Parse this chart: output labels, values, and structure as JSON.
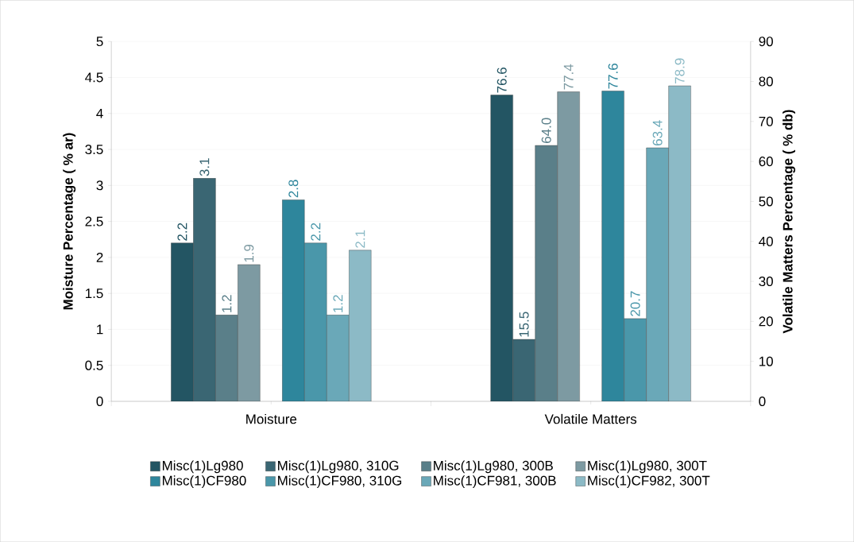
{
  "chart_data": {
    "type": "bar",
    "categories": [
      "Moisture",
      "Volatile Matters"
    ],
    "ylabel": "Moisture Percentage ( % ar)",
    "y2label": "Volatile Matters Percentage ( % db)",
    "ylim": [
      0,
      5
    ],
    "yticks": [
      0,
      0.5,
      1,
      1.5,
      2,
      2.5,
      3,
      3.5,
      4,
      4.5,
      5
    ],
    "y2lim": [
      0,
      90
    ],
    "y2ticks": [
      0,
      10,
      20,
      30,
      40,
      50,
      60,
      70,
      80,
      90
    ],
    "grid": "y",
    "legend": "bottom",
    "series": [
      {
        "name": "Misc(1)Lg980",
        "color": "#235563",
        "values": [
          2.2,
          null
        ],
        "value_labels": [
          "2.2",
          null
        ]
      },
      {
        "name": "Misc(1)Lg980, 310G",
        "color": "#3a6673",
        "values": [
          3.1,
          null
        ],
        "value_labels": [
          "3.1",
          null
        ]
      },
      {
        "name": "Misc(1)Lg980, 300B",
        "color": "#5a7f89",
        "values": [
          1.2,
          null
        ],
        "value_labels": [
          "1.2",
          null
        ]
      },
      {
        "name": "Misc(1)Lg980, 300T",
        "color": "#7d9aa2",
        "values": [
          1.9,
          null
        ],
        "value_labels": [
          "1.9",
          null
        ]
      },
      {
        "name": "Misc(1)CF980",
        "color": "#2e869c",
        "values": [
          2.8,
          null
        ],
        "value_labels": [
          "2.8",
          null
        ]
      },
      {
        "name": "Misc(1)CF980, 310G",
        "color": "#4a97aa",
        "values": [
          2.2,
          null
        ],
        "value_labels": [
          "2.2",
          null
        ]
      },
      {
        "name": "Misc(1)CF981, 300B",
        "color": "#6aa8b8",
        "values": [
          1.2,
          null
        ],
        "value_labels": [
          "1.2",
          null
        ]
      },
      {
        "name": "Misc(1)CF982, 300T",
        "color": "#8cbac6",
        "values": [
          2.1,
          null
        ],
        "value_labels": [
          "2.1",
          null
        ]
      },
      {
        "axis": "y2",
        "color": "#235563",
        "values": [
          null,
          76.6
        ],
        "value_labels": [
          null,
          "76.6"
        ]
      },
      {
        "axis": "y2",
        "color": "#3a6673",
        "values": [
          null,
          15.5
        ],
        "value_labels": [
          null,
          "15.5"
        ]
      },
      {
        "axis": "y2",
        "color": "#5a7f89",
        "values": [
          null,
          64.0
        ],
        "value_labels": [
          null,
          "64.0"
        ]
      },
      {
        "axis": "y2",
        "color": "#7d9aa2",
        "values": [
          null,
          77.4
        ],
        "value_labels": [
          null,
          "77.4"
        ]
      },
      {
        "axis": "y2",
        "color": "#2e869c",
        "values": [
          null,
          77.6
        ],
        "value_labels": [
          null,
          "77.6"
        ]
      },
      {
        "axis": "y2",
        "color": "#4a97aa",
        "values": [
          null,
          20.7
        ],
        "value_labels": [
          null,
          "20.7"
        ]
      },
      {
        "axis": "y2",
        "color": "#6aa8b8",
        "values": [
          null,
          63.4
        ],
        "value_labels": [
          null,
          "63.4"
        ]
      },
      {
        "axis": "y2",
        "color": "#8cbac6",
        "values": [
          null,
          78.9
        ],
        "value_labels": [
          null,
          "78.9"
        ]
      }
    ]
  }
}
